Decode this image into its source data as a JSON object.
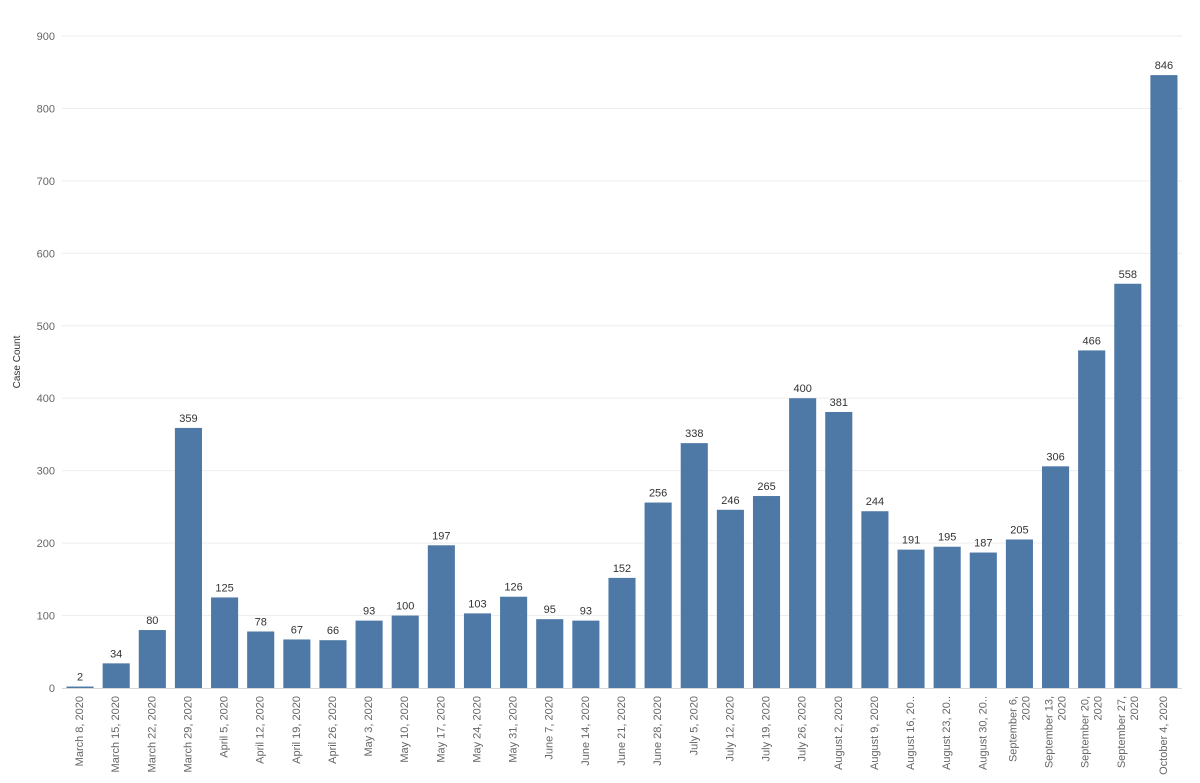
{
  "chart_data": {
    "type": "bar",
    "title": "",
    "xlabel": "",
    "ylabel": "Case Count",
    "ylim": [
      0,
      900
    ],
    "yticks": [
      0,
      100,
      200,
      300,
      400,
      500,
      600,
      700,
      800,
      900
    ],
    "grid": true,
    "bar_color": "#4e79a7",
    "categories": [
      "March 8, 2020",
      "March 15, 2020",
      "March 22, 2020",
      "March 29, 2020",
      "April 5, 2020",
      "April 12, 2020",
      "April 19, 2020",
      "April 26, 2020",
      "May 3, 2020",
      "May 10, 2020",
      "May 17, 2020",
      "May 24, 2020",
      "May 31, 2020",
      "June 7, 2020",
      "June 14, 2020",
      "June 21, 2020",
      "June 28, 2020",
      "July 5, 2020",
      "July 12, 2020",
      "July 19, 2020",
      "July 26, 2020",
      "August 2, 2020",
      "August 9, 2020",
      "August 16, 20..",
      "August 23, 20..",
      "August 30, 20..",
      "September 6, 2020",
      "September 13, 2020",
      "September 20, 2020",
      "September 27, 2020",
      "October 4, 2020"
    ],
    "values": [
      2,
      34,
      80,
      359,
      125,
      78,
      67,
      66,
      93,
      100,
      197,
      103,
      126,
      95,
      93,
      152,
      256,
      338,
      246,
      265,
      400,
      381,
      244,
      191,
      195,
      187,
      205,
      306,
      466,
      558,
      846
    ]
  }
}
